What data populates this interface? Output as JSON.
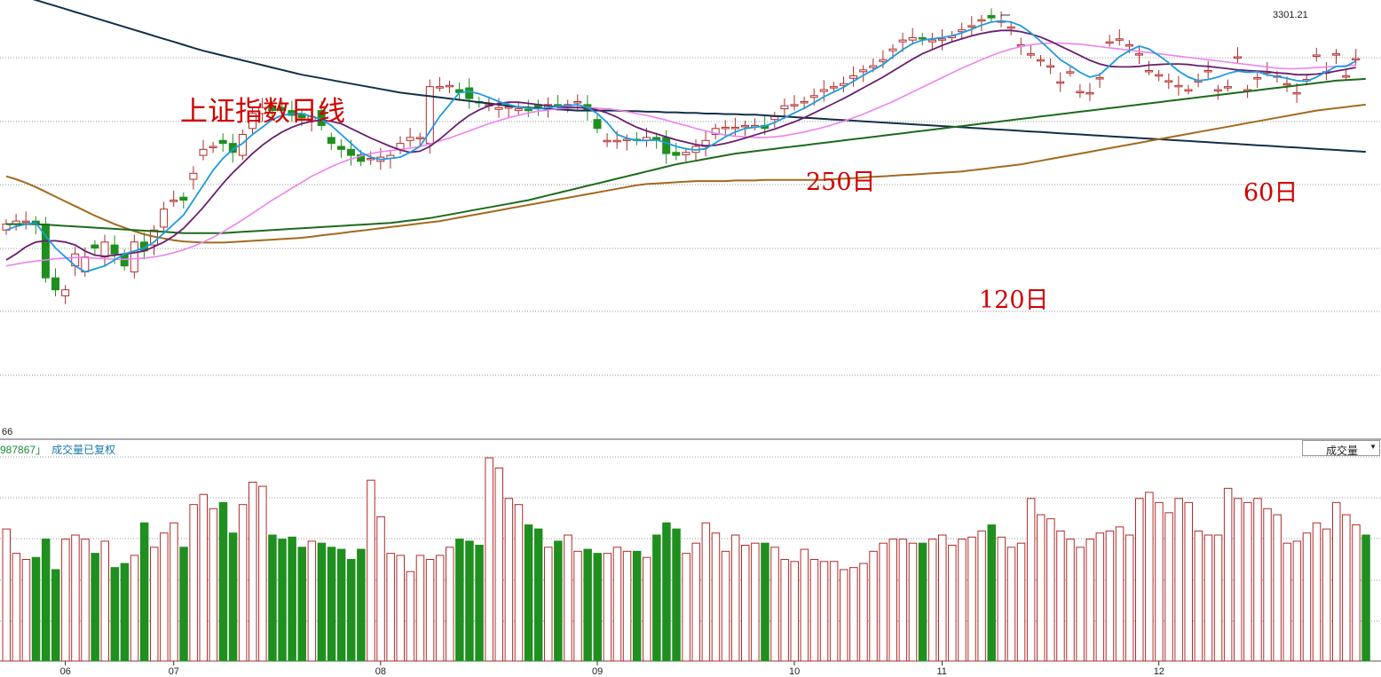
{
  "title": "上证指数日线",
  "ma_labels": {
    "ma250": "250日",
    "ma120": "120日",
    "ma60": "60日"
  },
  "price_axis": {
    "min_label": "66",
    "peak_label": "3301.21",
    "ylim": [
      2590,
      3325
    ]
  },
  "volume_panel": {
    "info_value": "987867",
    "info_tail": "」",
    "info_note": "成交量已复权",
    "selector_value": "成交量"
  },
  "colors": {
    "up": "#b22b2b",
    "down": "#1f8f1f",
    "ma5": "#1e9be0",
    "ma10": "#6a1f6e",
    "ma20": "#ee82ee",
    "ma60": "#1c6b1c",
    "ma120": "#a36a1e",
    "ma250": "#12304a"
  },
  "chart_data": {
    "type": "candlestick",
    "x_ticks": [
      {
        "label": "06",
        "index": 6
      },
      {
        "label": "07",
        "index": 17
      },
      {
        "label": "08",
        "index": 38
      },
      {
        "label": "09",
        "index": 60
      },
      {
        "label": "10",
        "index": 80
      },
      {
        "label": "11",
        "index": 95
      },
      {
        "label": "12",
        "index": 117
      }
    ],
    "seeds": {
      "closes": [
        2950,
        2955,
        2955,
        2950,
        2860,
        2840,
        2840,
        2900,
        2895,
        2910,
        2920,
        2900,
        2880,
        2920,
        2905,
        2940,
        2975,
        2990,
        2990,
        3035,
        3075,
        3080,
        3085,
        3070,
        3100,
        3135,
        3145,
        3140,
        3140,
        3132,
        3128,
        3130,
        3115,
        3085,
        3075,
        3065,
        3055,
        3060,
        3062,
        3065,
        3085,
        3095,
        3095,
        3180,
        3180,
        3182,
        3170,
        3160,
        3153,
        3150,
        3145,
        3146,
        3143,
        3140,
        3145,
        3150,
        3148,
        3150,
        3155,
        3140,
        3110,
        3090,
        3090,
        3092,
        3090,
        3095,
        3090,
        3068,
        3065,
        3070,
        3080,
        3090,
        3110,
        3112,
        3112,
        3115,
        3115,
        3110,
        3130,
        3148,
        3150,
        3155,
        3165,
        3175,
        3180,
        3185,
        3198,
        3208,
        3215,
        3225,
        3243,
        3258,
        3262,
        3260,
        3258,
        3260,
        3265,
        3275,
        3282,
        3292,
        3295,
        3290,
        3280,
        3250,
        3235,
        3225,
        3215,
        3188,
        3205,
        3172,
        3170,
        3195,
        3255,
        3260,
        3250,
        3235,
        3207,
        3200,
        3190,
        3182,
        3175,
        3190,
        3207,
        3175,
        3180,
        3230,
        3175,
        3195,
        3205,
        3198,
        3185,
        3170,
        3192,
        3233,
        3205,
        3235,
        3198,
        3227,
        3240
      ],
      "opens": [
        2940,
        2950,
        2955,
        2955,
        2950,
        2860,
        2830,
        2880,
        2870,
        2915,
        2895,
        2915,
        2900,
        2870,
        2920,
        2915,
        2945,
        2990,
        2995,
        3025,
        3065,
        3080,
        3090,
        3085,
        3065,
        3110,
        3135,
        3148,
        3145,
        3140,
        3135,
        3122,
        3140,
        3095,
        3080,
        3075,
        3066,
        3060,
        3055,
        3060,
        3075,
        3090,
        3095,
        3085,
        3180,
        3180,
        3175,
        3178,
        3155,
        3150,
        3142,
        3146,
        3140,
        3142,
        3150,
        3145,
        3150,
        3148,
        3155,
        3150,
        3125,
        3090,
        3090,
        3090,
        3092,
        3090,
        3095,
        3095,
        3070,
        3066,
        3070,
        3080,
        3100,
        3110,
        3110,
        3115,
        3115,
        3115,
        3125,
        3143,
        3148,
        3153,
        3162,
        3172,
        3178,
        3182,
        3194,
        3205,
        3212,
        3222,
        3240,
        3255,
        3258,
        3262,
        3255,
        3258,
        3262,
        3272,
        3280,
        3290,
        3299,
        3290,
        3280,
        3250,
        3235,
        3225,
        3215,
        3188,
        3205,
        3172,
        3170,
        3195,
        3255,
        3260,
        3250,
        3235,
        3207,
        3200,
        3190,
        3182,
        3175,
        3190,
        3207,
        3175,
        3180,
        3230,
        3175,
        3195,
        3205,
        3198,
        3185,
        3170,
        3192,
        3233,
        3205,
        3235,
        3198,
        3227
      ],
      "ma5": [
        2940,
        2946,
        2950,
        2952,
        2930,
        2910,
        2895,
        2880,
        2870,
        2875,
        2880,
        2890,
        2900,
        2905,
        2910,
        2920,
        2935,
        2950,
        2965,
        2990,
        3015,
        3040,
        3060,
        3075,
        3085,
        3100,
        3112,
        3125,
        3132,
        3135,
        3135,
        3130,
        3125,
        3115,
        3100,
        3085,
        3070,
        3062,
        3058,
        3060,
        3062,
        3070,
        3080,
        3105,
        3130,
        3150,
        3170,
        3172,
        3168,
        3162,
        3155,
        3150,
        3146,
        3144,
        3143,
        3145,
        3147,
        3148,
        3150,
        3145,
        3135,
        3120,
        3100,
        3094,
        3090,
        3090,
        3091,
        3086,
        3080,
        3076,
        3074,
        3076,
        3086,
        3096,
        3104,
        3110,
        3112,
        3114,
        3120,
        3128,
        3136,
        3144,
        3153,
        3163,
        3171,
        3179,
        3189,
        3199,
        3208,
        3217,
        3230,
        3242,
        3252,
        3258,
        3260,
        3262,
        3265,
        3270,
        3276,
        3283,
        3288,
        3290,
        3288,
        3282,
        3270,
        3256,
        3241,
        3225,
        3215,
        3204,
        3196,
        3200,
        3215,
        3230,
        3240,
        3248,
        3243,
        3232,
        3220,
        3206,
        3196,
        3190,
        3192,
        3196,
        3202,
        3206,
        3204,
        3205,
        3200,
        3197,
        3194,
        3190,
        3189,
        3196,
        3205,
        3214,
        3214,
        3223
      ],
      "ma10": [
        2890,
        2900,
        2912,
        2920,
        2922,
        2922,
        2920,
        2915,
        2905,
        2898,
        2896,
        2898,
        2900,
        2902,
        2905,
        2912,
        2920,
        2930,
        2943,
        2960,
        2978,
        2998,
        3018,
        3036,
        3052,
        3068,
        3082,
        3094,
        3104,
        3112,
        3118,
        3122,
        3124,
        3122,
        3118,
        3110,
        3102,
        3094,
        3087,
        3080,
        3074,
        3070,
        3072,
        3080,
        3092,
        3106,
        3120,
        3132,
        3141,
        3148,
        3152,
        3154,
        3154,
        3152,
        3150,
        3148,
        3146,
        3145,
        3145,
        3144,
        3141,
        3136,
        3129,
        3120,
        3112,
        3106,
        3101,
        3096,
        3091,
        3087,
        3083,
        3081,
        3082,
        3085,
        3089,
        3094,
        3099,
        3104,
        3109,
        3115,
        3121,
        3128,
        3136,
        3144,
        3152,
        3160,
        3169,
        3178,
        3187,
        3196,
        3206,
        3216,
        3226,
        3235,
        3242,
        3249,
        3255,
        3260,
        3265,
        3269,
        3272,
        3274,
        3274,
        3272,
        3268,
        3263,
        3256,
        3248,
        3240,
        3232,
        3224,
        3218,
        3214,
        3213,
        3213,
        3214,
        3216,
        3217,
        3218,
        3218,
        3217,
        3215,
        3214,
        3212,
        3210,
        3208,
        3207,
        3206,
        3205,
        3203,
        3202,
        3200,
        3200,
        3201,
        3203,
        3206,
        3209,
        3212
      ],
      "ma20": [
        2880,
        2883,
        2886,
        2888,
        2890,
        2892,
        2893,
        2894,
        2894,
        2893,
        2892,
        2891,
        2891,
        2892,
        2893,
        2895,
        2898,
        2902,
        2907,
        2913,
        2920,
        2928,
        2937,
        2947,
        2957,
        2968,
        2979,
        2990,
        3000,
        3010,
        3020,
        3030,
        3038,
        3046,
        3053,
        3059,
        3064,
        3068,
        3071,
        3073,
        3075,
        3077,
        3080,
        3084,
        3089,
        3094,
        3100,
        3106,
        3112,
        3118,
        3123,
        3128,
        3132,
        3136,
        3139,
        3141,
        3143,
        3144,
        3145,
        3145,
        3144,
        3143,
        3141,
        3138,
        3135,
        3132,
        3128,
        3124,
        3119,
        3115,
        3110,
        3106,
        3102,
        3099,
        3097,
        3096,
        3095,
        3095,
        3096,
        3098,
        3101,
        3104,
        3108,
        3112,
        3117,
        3122,
        3128,
        3134,
        3141,
        3148,
        3155,
        3163,
        3171,
        3179,
        3187,
        3195,
        3203,
        3211,
        3218,
        3225,
        3232,
        3238,
        3243,
        3247,
        3250,
        3252,
        3253,
        3253,
        3252,
        3251,
        3249,
        3247,
        3245,
        3243,
        3241,
        3239,
        3237,
        3235,
        3233,
        3231,
        3229,
        3227,
        3225,
        3223,
        3221,
        3219,
        3217,
        3215,
        3213,
        3211,
        3210,
        3210,
        3211,
        3212,
        3213,
        3214,
        3215,
        3216
      ],
      "ma60": [
        2950,
        2950,
        2950,
        2950,
        2949,
        2948,
        2947,
        2946,
        2945,
        2944,
        2943,
        2942,
        2941,
        2940,
        2939,
        2938,
        2937,
        2936,
        2935,
        2935,
        2935,
        2935,
        2935,
        2936,
        2937,
        2938,
        2939,
        2940,
        2941,
        2942,
        2943,
        2944,
        2945,
        2946,
        2947,
        2948,
        2949,
        2950,
        2951,
        2952,
        2954,
        2956,
        2958,
        2960,
        2963,
        2966,
        2969,
        2972,
        2975,
        2978,
        2981,
        2984,
        2987,
        2990,
        2994,
        2998,
        3002,
        3006,
        3010,
        3014,
        3018,
        3022,
        3026,
        3030,
        3034,
        3038,
        3042,
        3046,
        3050,
        3053,
        3056,
        3059,
        3062,
        3065,
        3068,
        3070,
        3072,
        3074,
        3076,
        3078,
        3080,
        3082,
        3084,
        3086,
        3088,
        3090,
        3092,
        3094,
        3096,
        3098,
        3100,
        3102,
        3104,
        3106,
        3108,
        3110,
        3112,
        3114,
        3116,
        3118,
        3120,
        3122,
        3124,
        3126,
        3128,
        3130,
        3132,
        3134,
        3136,
        3138,
        3140,
        3142,
        3144,
        3146,
        3148,
        3150,
        3152,
        3154,
        3156,
        3158,
        3160,
        3162,
        3164,
        3166,
        3168,
        3170,
        3172,
        3174,
        3176,
        3178,
        3180,
        3182,
        3184,
        3186,
        3188,
        3190,
        3191,
        3192,
        3193
      ],
      "ma120": [
        3030,
        3025,
        3019,
        3012,
        3004,
        2996,
        2988,
        2980,
        2972,
        2964,
        2957,
        2950,
        2944,
        2938,
        2933,
        2929,
        2926,
        2923,
        2921,
        2920,
        2919,
        2919,
        2919,
        2920,
        2921,
        2922,
        2923,
        2924,
        2925,
        2926,
        2927,
        2929,
        2931,
        2933,
        2935,
        2937,
        2939,
        2941,
        2943,
        2945,
        2947,
        2949,
        2951,
        2953,
        2955,
        2958,
        2961,
        2964,
        2967,
        2970,
        2973,
        2976,
        2979,
        2982,
        2985,
        2988,
        2991,
        2994,
        2997,
        3000,
        3003,
        3006,
        3009,
        3012,
        3015,
        3017,
        3018,
        3019,
        3020,
        3021,
        3022,
        3022,
        3022,
        3022,
        3023,
        3023,
        3023,
        3024,
        3024,
        3024,
        3024,
        3024,
        3024,
        3024,
        3025,
        3026,
        3027,
        3028,
        3029,
        3030,
        3031,
        3032,
        3033,
        3034,
        3035,
        3036,
        3037,
        3038,
        3040,
        3042,
        3044,
        3046,
        3048,
        3050,
        3053,
        3056,
        3059,
        3062,
        3065,
        3068,
        3071,
        3074,
        3077,
        3080,
        3083,
        3086,
        3089,
        3092,
        3095,
        3098,
        3101,
        3104,
        3107,
        3110,
        3113,
        3116,
        3119,
        3122,
        3125,
        3128,
        3131,
        3134,
        3137,
        3140,
        3142,
        3144,
        3146,
        3148,
        3150
      ],
      "ma250": [
        3340,
        3335,
        3330,
        3325,
        3320,
        3315,
        3310,
        3305,
        3300,
        3295,
        3290,
        3285,
        3280,
        3275,
        3270,
        3265,
        3260,
        3255,
        3250,
        3245,
        3240,
        3236,
        3232,
        3228,
        3224,
        3220,
        3216,
        3212,
        3208,
        3204,
        3200,
        3197,
        3194,
        3191,
        3188,
        3185,
        3182,
        3179,
        3176,
        3173,
        3170,
        3168,
        3166,
        3164,
        3162,
        3160,
        3158,
        3156,
        3154,
        3152,
        3150,
        3148,
        3146,
        3145,
        3144,
        3143,
        3142,
        3141,
        3140,
        3140,
        3140,
        3140,
        3140,
        3139,
        3139,
        3138,
        3138,
        3137,
        3137,
        3136,
        3136,
        3135,
        3135,
        3134,
        3134,
        3133,
        3133,
        3132,
        3131,
        3130,
        3129,
        3128,
        3127,
        3126,
        3125,
        3124,
        3123,
        3122,
        3121,
        3120,
        3119,
        3118,
        3117,
        3116,
        3115,
        3114,
        3113,
        3112,
        3111,
        3110,
        3109,
        3108,
        3107,
        3106,
        3105,
        3104,
        3103,
        3102,
        3101,
        3100,
        3099,
        3098,
        3097,
        3096,
        3095,
        3094,
        3093,
        3092,
        3091,
        3090,
        3089,
        3088,
        3087,
        3086,
        3085,
        3084,
        3083,
        3082,
        3081,
        3080,
        3079,
        3078,
        3077,
        3076,
        3075,
        3074,
        3073,
        3072,
        3071
      ],
      "volume": [
        0.65,
        0.53,
        0.5,
        0.51,
        0.6,
        0.45,
        0.6,
        0.62,
        0.6,
        0.53,
        0.59,
        0.46,
        0.48,
        0.52,
        0.68,
        0.56,
        0.63,
        0.68,
        0.56,
        0.77,
        0.82,
        0.75,
        0.78,
        0.63,
        0.77,
        0.88,
        0.86,
        0.62,
        0.6,
        0.61,
        0.56,
        0.59,
        0.58,
        0.56,
        0.55,
        0.5,
        0.55,
        0.89,
        0.71,
        0.53,
        0.52,
        0.44,
        0.52,
        0.5,
        0.52,
        0.56,
        0.6,
        0.59,
        0.57,
        1.0,
        0.95,
        0.8,
        0.77,
        0.67,
        0.65,
        0.56,
        0.59,
        0.62,
        0.54,
        0.55,
        0.53,
        0.53,
        0.56,
        0.54,
        0.54,
        0.51,
        0.62,
        0.68,
        0.65,
        0.53,
        0.58,
        0.68,
        0.63,
        0.54,
        0.62,
        0.57,
        0.58,
        0.58,
        0.56,
        0.5,
        0.49,
        0.55,
        0.5,
        0.49,
        0.49,
        0.45,
        0.46,
        0.48,
        0.54,
        0.58,
        0.6,
        0.6,
        0.58,
        0.58,
        0.6,
        0.62,
        0.57,
        0.6,
        0.61,
        0.64,
        0.67,
        0.61,
        0.56,
        0.58,
        0.8,
        0.72,
        0.7,
        0.64,
        0.6,
        0.56,
        0.6,
        0.63,
        0.64,
        0.66,
        0.62,
        0.8,
        0.83,
        0.78,
        0.73,
        0.8,
        0.78,
        0.64,
        0.62,
        0.62,
        0.85,
        0.8,
        0.78,
        0.8,
        0.75,
        0.72,
        0.58,
        0.59,
        0.63,
        0.68,
        0.65,
        0.78,
        0.72,
        0.67,
        0.62
      ]
    }
  }
}
